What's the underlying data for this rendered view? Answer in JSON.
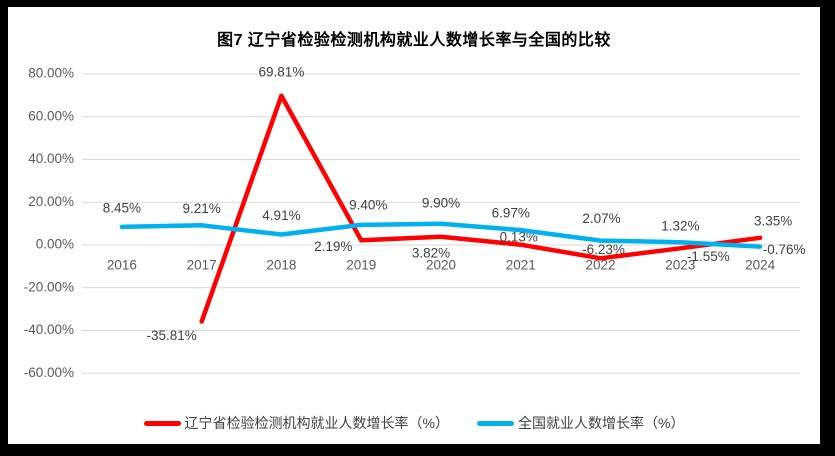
{
  "title": "图7 辽宁省检验检测机构就业人数增长率与全国的比较",
  "chart_data": {
    "type": "line",
    "categories": [
      "2016",
      "2017",
      "2018",
      "2019",
      "2020",
      "2021",
      "2022",
      "2023",
      "2024"
    ],
    "series": [
      {
        "name": "辽宁省检验检测机构就业人数增长率（%）",
        "color": "#FF0000",
        "values": [
          null,
          -35.81,
          69.81,
          2.19,
          3.82,
          0.13,
          -6.23,
          -1.55,
          3.35
        ],
        "point_labels": [
          "",
          "-35.81%",
          "69.81%",
          "2.19%",
          "3.82%",
          "0.13%",
          "-6.23%",
          "-1.55%",
          "3.35%"
        ]
      },
      {
        "name": "全国就业人数增长率（%）",
        "color": "#00B0F0",
        "values": [
          8.45,
          9.21,
          4.91,
          9.4,
          9.9,
          6.97,
          2.07,
          1.32,
          -0.76
        ],
        "point_labels": [
          "8.45%",
          "9.21%",
          "4.91%",
          "9.40%",
          "9.90%",
          "6.97%",
          "2.07%",
          "1.32%",
          "-0.76%"
        ]
      }
    ],
    "y_ticks": [
      {
        "label": "80.00%",
        "value": 80
      },
      {
        "label": "60.00%",
        "value": 60
      },
      {
        "label": "40.00%",
        "value": 40
      },
      {
        "label": "20.00%",
        "value": 20
      },
      {
        "label": "0.00%",
        "value": 0
      },
      {
        "label": "-20.00%",
        "value": -20
      },
      {
        "label": "-40.00%",
        "value": -40
      },
      {
        "label": "-60.00%",
        "value": -60
      }
    ],
    "ylim": [
      -60,
      80
    ],
    "xlabel": "",
    "ylabel": "",
    "grid": true,
    "legend_position": "bottom"
  },
  "colors": {
    "frame": "#000000",
    "background": "#ffffff",
    "gridline": "#d9d9d9",
    "axis_text": "#595959",
    "data_label": "#404040",
    "title_text": "#000000"
  }
}
